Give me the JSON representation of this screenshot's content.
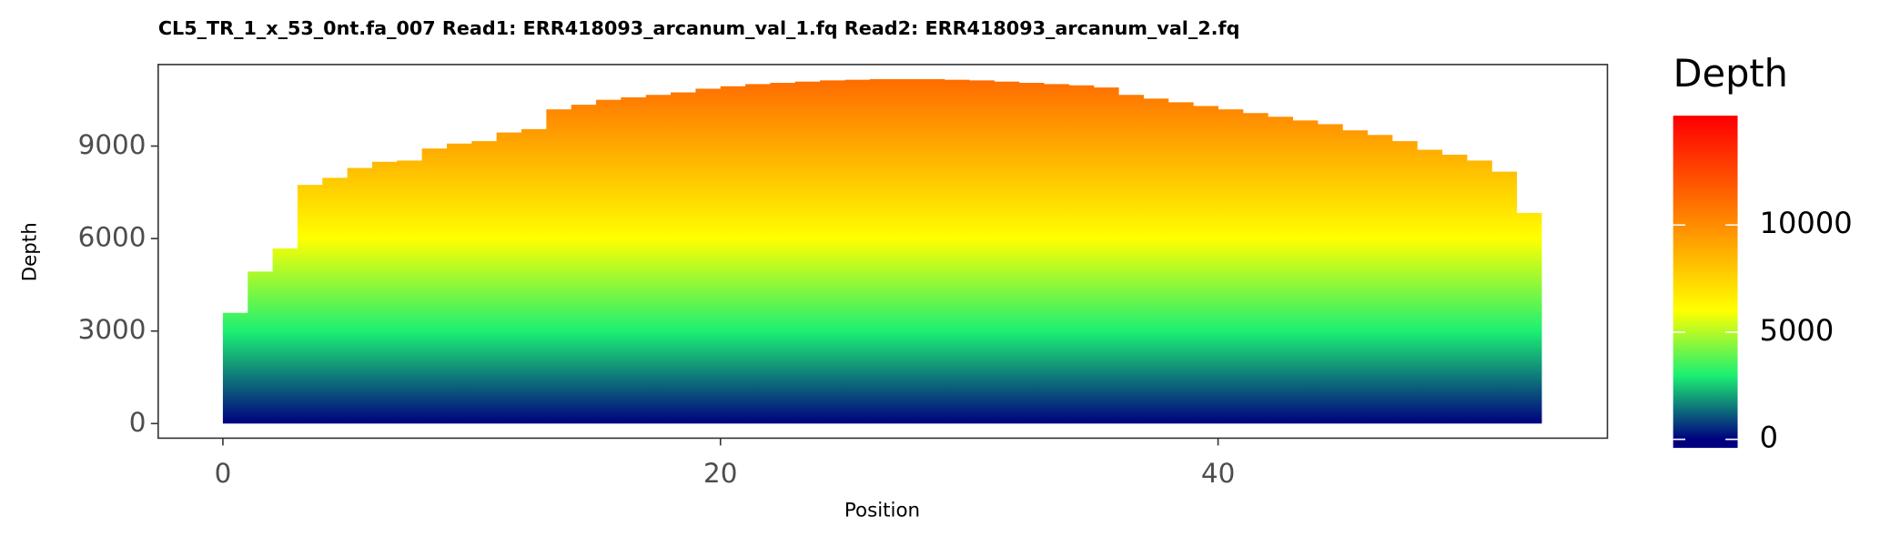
{
  "chart_data": {
    "type": "bar",
    "title": "CL5_TR_1_x_53_0nt.fa_007   Read1: ERR418093_arcanum_val_1.fq   Read2: ERR418093_arcanum_val_2.fq",
    "x_label": "Position",
    "y_label": "Depth",
    "x": [
      0,
      1,
      2,
      3,
      4,
      5,
      6,
      7,
      8,
      9,
      10,
      11,
      12,
      13,
      14,
      15,
      16,
      17,
      18,
      19,
      20,
      21,
      22,
      23,
      24,
      25,
      26,
      27,
      28,
      29,
      30,
      31,
      32,
      33,
      34,
      35,
      36,
      37,
      38,
      39,
      40,
      41,
      42,
      43,
      44,
      45,
      46,
      47,
      48,
      49,
      50,
      51,
      52
    ],
    "values": [
      3590,
      4930,
      5680,
      7740,
      7970,
      8290,
      8490,
      8530,
      8920,
      9080,
      9160,
      9440,
      9550,
      10190,
      10340,
      10500,
      10580,
      10660,
      10740,
      10860,
      10940,
      11010,
      11050,
      11090,
      11130,
      11150,
      11170,
      11170,
      11170,
      11150,
      11130,
      11090,
      11050,
      11010,
      10970,
      10900,
      10660,
      10540,
      10420,
      10300,
      10190,
      10070,
      9950,
      9830,
      9710,
      9510,
      9360,
      9160,
      8880,
      8720,
      8530,
      8170,
      6830
    ],
    "xlim": [
      -2.6,
      55.65
    ],
    "xticks": [
      0,
      20,
      40
    ],
    "ylim": [
      -474,
      11645
    ],
    "yticks": [
      0,
      3000,
      6000,
      9000
    ],
    "legend_title": "Depth",
    "colorlim": [
      -400,
      15100
    ],
    "colorticks": [
      0,
      5000,
      10000
    ],
    "color_stops": [
      {
        "value": 0,
        "color": "#000080"
      },
      {
        "value": 3000,
        "color": "#1cf073"
      },
      {
        "value": 6000,
        "color": "#ffff00"
      },
      {
        "value": 10000,
        "color": "#ff8c00"
      },
      {
        "value": 15000,
        "color": "#ff0000"
      }
    ]
  }
}
